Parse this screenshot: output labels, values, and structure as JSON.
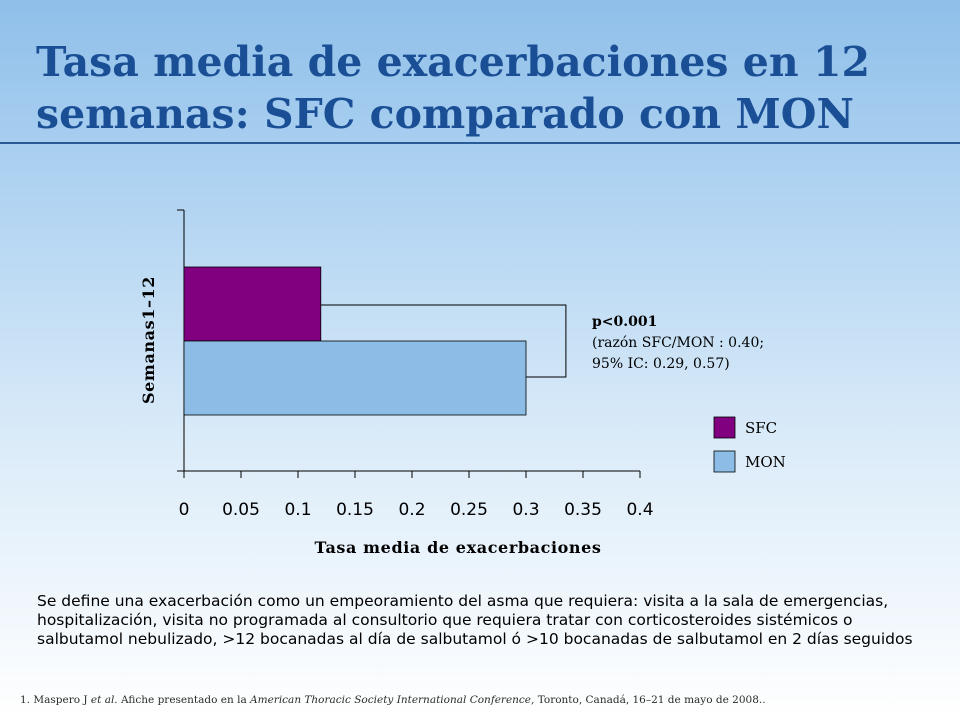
{
  "slide": {
    "title": "Tasa media de exacerbaciones en 12 semanas: SFC comparado con MON",
    "definition": "Se define una exacerbación como un empeoramiento del asma que requiera:  visita a la sala de emergencias, hospitalización, visita no programada al consultorio que requiera tratar con corticosteroides sistémicos o salbutamol nebulizado, >12 bocanadas al día de salbutamol ó >10 bocanadas de salbutamol  en 2 días seguidos",
    "footnote": {
      "n1": "1. Maspero J ",
      "i1": "et al.",
      "n2": " Afiche presentado en la ",
      "i2": "American Thoracic Society International Conference,",
      "n3": " Toronto, Canadá, 16–21 de mayo de 2008.."
    }
  },
  "chart_data": {
    "type": "bar",
    "orientation": "horizontal",
    "categories": [
      "Semanas1–12"
    ],
    "series": [
      {
        "name": "SFC",
        "values": [
          0.12
        ],
        "color": "#800080"
      },
      {
        "name": "MON",
        "values": [
          0.3
        ],
        "color": "#8dbde6"
      }
    ],
    "xlabel": "Tasa media de exacerbaciones",
    "ylabel": "Semanas1–12",
    "xlim": [
      0,
      0.4
    ],
    "xticks": [
      "0",
      "0.05",
      "0.1",
      "0.15",
      "0.2",
      "0.25",
      "0.3",
      "0.35",
      "0.4"
    ],
    "grid": false,
    "legend_position": "right",
    "annotation": {
      "line1": "p<0.001",
      "line2": "(razón SFC/MON : 0.40;",
      "line3": "95% IC: 0.29, 0.57)"
    }
  }
}
